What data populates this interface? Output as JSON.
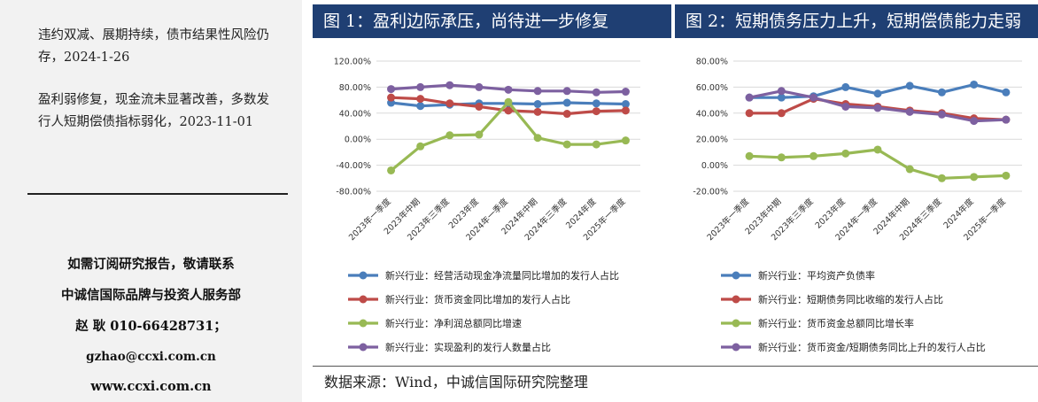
{
  "sidebar": {
    "news": [
      {
        "text": "违约双减、展期持续，债市结果性风险仍存，2024-1-26"
      },
      {
        "text": "盈利弱修复，现金流未显著改善，多数发行人短期偿债指标弱化，2023-11-01"
      }
    ],
    "contact": {
      "line1": "如需订阅研究报告，敬请联系",
      "line2": "中诚信国际品牌与投资人服务部",
      "line3": "赵 耿  010-66428731；",
      "email": "gzhao@ccxi.com.cn",
      "website": "www.ccxi.com.cn"
    }
  },
  "figures": [
    {
      "header": "图 1：盈利边际承压，尚待进一步修复"
    },
    {
      "header": "图 2：短期债务压力上升，短期偿债能力走弱"
    }
  ],
  "source": "数据来源：Wind，中诚信国际研究院整理",
  "chart_data": [
    {
      "type": "line",
      "title": "",
      "categories": [
        "2023年一季度",
        "2023年中期",
        "2023年三季度",
        "2023年度",
        "2024年一季度",
        "2024年中期",
        "2024年三季度",
        "2024年度",
        "2025年一季度"
      ],
      "yticks": [
        "120.00%",
        "80.00%",
        "40.00%",
        "0.00%",
        "-40.00%",
        "-80.00%"
      ],
      "ylim": [
        -80,
        120
      ],
      "grid": true,
      "legend_position": "bottom",
      "series": [
        {
          "name": "新兴行业：经营活动现金净流量同比增加的发行人占比",
          "color": "#4a7ebb",
          "values": [
            56,
            51,
            53,
            55,
            55,
            54,
            56,
            55,
            54
          ]
        },
        {
          "name": "新兴行业：货币资金同比增加的发行人占比",
          "color": "#be4b48",
          "values": [
            64,
            62,
            55,
            50,
            44,
            42,
            39,
            43,
            44
          ]
        },
        {
          "name": "新兴行业：净利润总额同比增速",
          "color": "#98b954",
          "values": [
            -48,
            -11,
            6,
            7,
            57,
            2,
            -8,
            -8,
            -2
          ]
        },
        {
          "name": "新兴行业：实现盈利的发行人数量占比",
          "color": "#7d60a0",
          "values": [
            77,
            80,
            83,
            80,
            76,
            74,
            74,
            72,
            73
          ]
        }
      ]
    },
    {
      "type": "line",
      "title": "",
      "categories": [
        "2023年一季度",
        "2023年中期",
        "2023年三季度",
        "2023年度",
        "2024年一季度",
        "2024年中期",
        "2024年三季度",
        "2024年度",
        "2025年一季度"
      ],
      "yticks": [
        "80.00%",
        "60.00%",
        "40.00%",
        "20.00%",
        "0.00%",
        "-20.00%"
      ],
      "ylim": [
        -20,
        80
      ],
      "grid": true,
      "legend_position": "bottom",
      "series": [
        {
          "name": "新兴行业：平均资产负债率",
          "color": "#4a7ebb",
          "values": [
            52,
            52,
            53,
            60,
            55,
            61,
            56,
            62,
            56
          ]
        },
        {
          "name": "新兴行业：短期债务同比收缩的发行人占比",
          "color": "#be4b48",
          "values": [
            40,
            40,
            51,
            47,
            45,
            42,
            40,
            36,
            35
          ]
        },
        {
          "name": "新兴行业：货币资金总额同比增长率",
          "color": "#98b954",
          "values": [
            7,
            6,
            7,
            9,
            12,
            -3,
            -10,
            -9,
            -8
          ]
        },
        {
          "name": "新兴行业：货币资金/短期债务同比上升的发行人占比",
          "color": "#7d60a0",
          "values": [
            52,
            57,
            52,
            45,
            44,
            41,
            39,
            34,
            35
          ]
        }
      ]
    }
  ]
}
